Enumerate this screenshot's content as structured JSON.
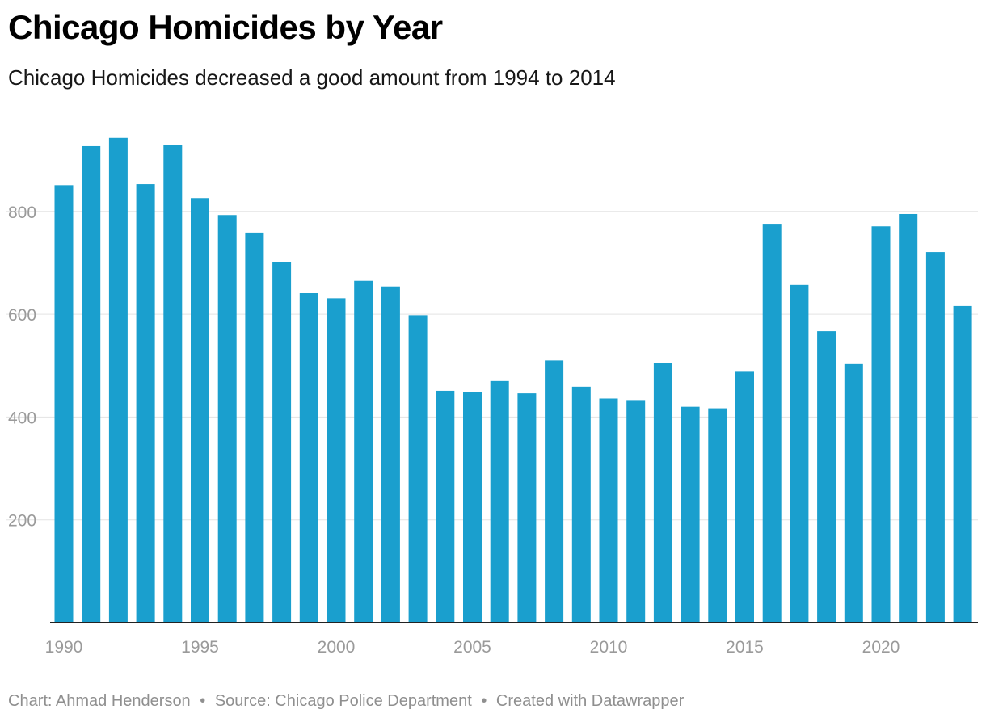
{
  "header": {
    "title": "Chicago Homicides by Year",
    "subtitle": "Chicago Homicides decreased a good amount from 1994 to 2014"
  },
  "footer": {
    "chart_credit": "Chart: Ahmad Henderson",
    "source": "Source: Chicago Police Department",
    "created_with": "Created with Datawrapper",
    "separator": "•"
  },
  "colors": {
    "bar": "#1a9fce",
    "grid": "#e3e3e3",
    "baseline": "#222222",
    "tick_label": "#9a9a9a"
  },
  "chart_data": {
    "type": "bar",
    "title": "Chicago Homicides by Year",
    "subtitle": "Chicago Homicides decreased a good amount from 1994 to 2014",
    "xlabel": "",
    "ylabel": "",
    "categories": [
      "1990",
      "1991",
      "1992",
      "1993",
      "1994",
      "1995",
      "1996",
      "1997",
      "1998",
      "1999",
      "2000",
      "2001",
      "2002",
      "2003",
      "2004",
      "2005",
      "2006",
      "2007",
      "2008",
      "2009",
      "2010",
      "2011",
      "2012",
      "2013",
      "2014",
      "2015",
      "2016",
      "2017",
      "2018",
      "2019",
      "2020",
      "2021",
      "2022",
      "2023"
    ],
    "values": [
      851,
      927,
      943,
      853,
      930,
      826,
      793,
      759,
      701,
      641,
      631,
      665,
      654,
      598,
      451,
      449,
      470,
      446,
      510,
      459,
      436,
      433,
      505,
      420,
      417,
      488,
      776,
      657,
      567,
      503,
      771,
      795,
      721,
      616
    ],
    "x_tick_labels": [
      "1990",
      "1995",
      "2000",
      "2005",
      "2010",
      "2015",
      "2020"
    ],
    "y_ticks": [
      200,
      400,
      600,
      800
    ],
    "ylim": [
      0,
      1000
    ],
    "grid": true,
    "legend": "none"
  }
}
